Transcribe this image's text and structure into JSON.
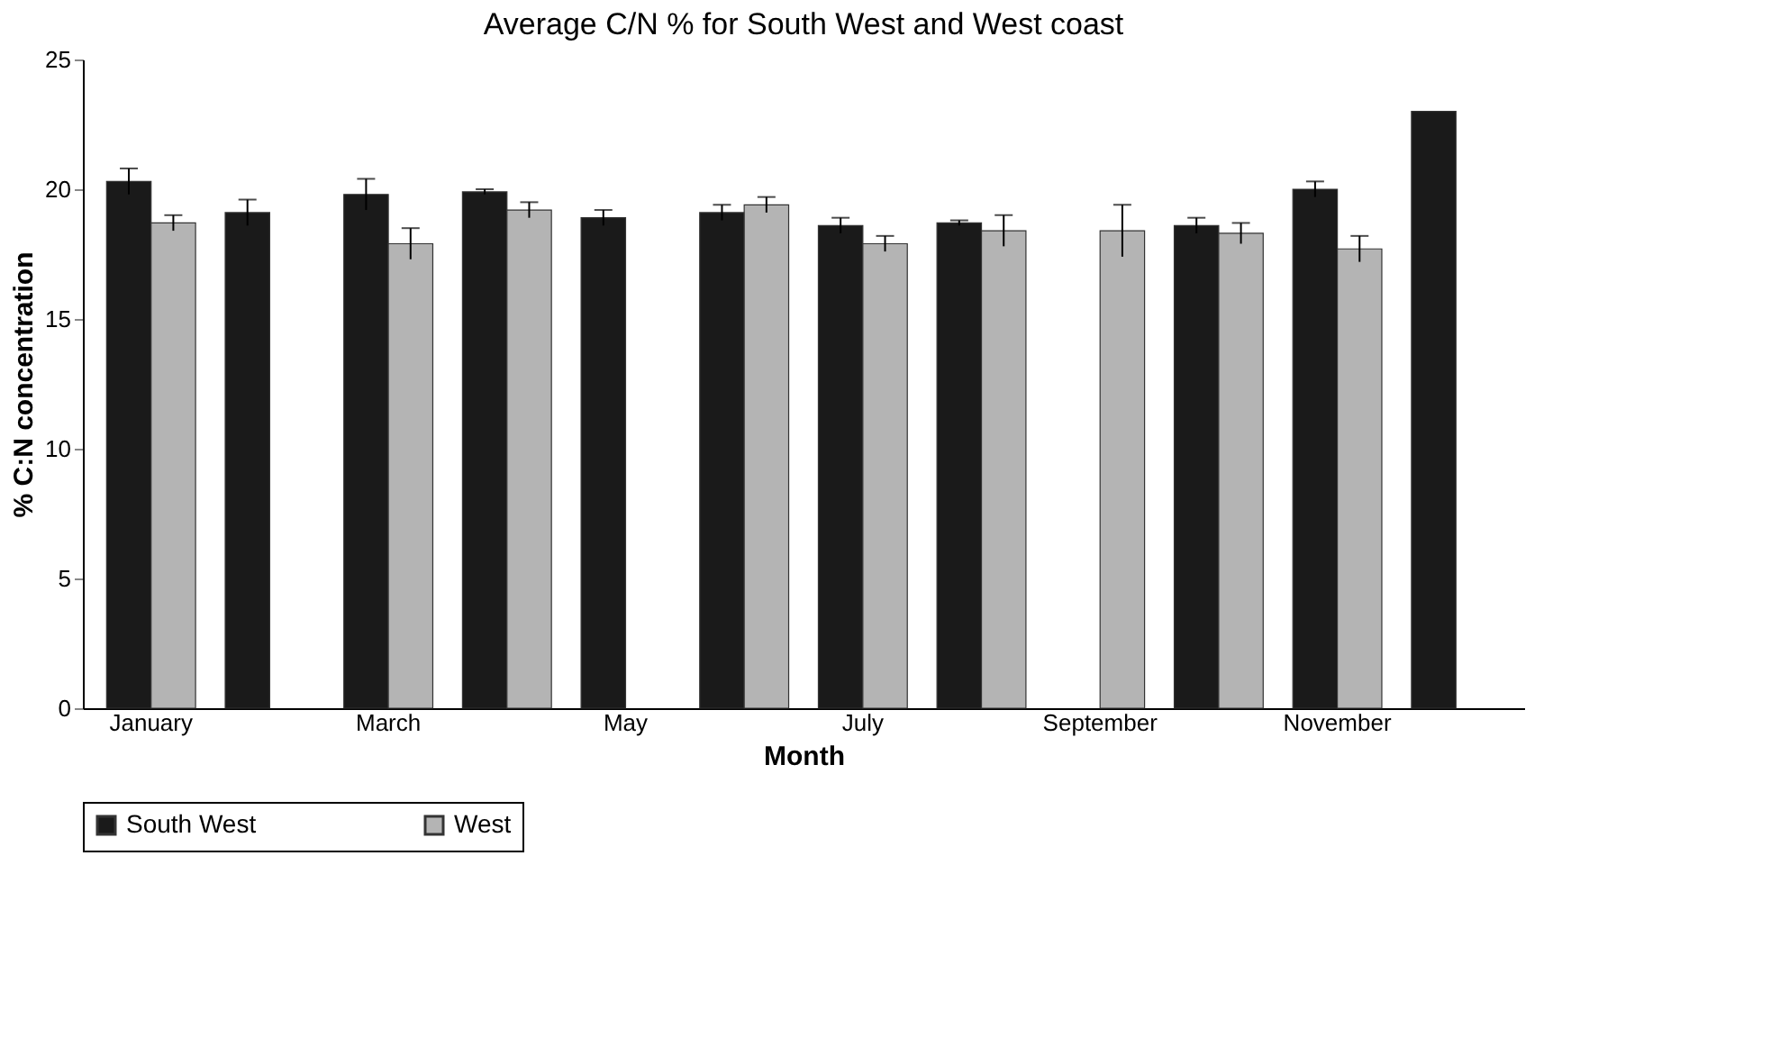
{
  "chart_data": {
    "type": "bar",
    "title": "Average C/N % for South West and West coast",
    "xlabel": "Month",
    "ylabel": "% C:N concentration",
    "categories": [
      "January",
      null,
      "March",
      null,
      "May",
      null,
      "July",
      null,
      "September",
      null,
      "November",
      null
    ],
    "series": [
      {
        "name": "South West",
        "color": "#1a1a1a",
        "values": [
          20.3,
          19.1,
          19.8,
          19.9,
          18.9,
          19.1,
          18.6,
          18.7,
          null,
          18.6,
          20.0,
          23.0
        ],
        "errors": [
          0.5,
          0.5,
          0.6,
          0.1,
          0.3,
          0.3,
          0.3,
          0.1,
          null,
          0.3,
          0.3,
          null
        ]
      },
      {
        "name": "West",
        "color": "#b4b4b4",
        "values": [
          18.7,
          null,
          17.9,
          19.2,
          null,
          19.4,
          17.9,
          18.4,
          18.4,
          18.3,
          17.7,
          null
        ],
        "errors": [
          0.3,
          null,
          0.6,
          0.3,
          null,
          0.3,
          0.3,
          0.6,
          1.0,
          0.4,
          0.5,
          null
        ]
      }
    ],
    "ylim": [
      0,
      25
    ],
    "yticks": [
      0,
      5,
      10,
      15,
      20,
      25
    ],
    "grid": false,
    "legend": "bottom"
  }
}
